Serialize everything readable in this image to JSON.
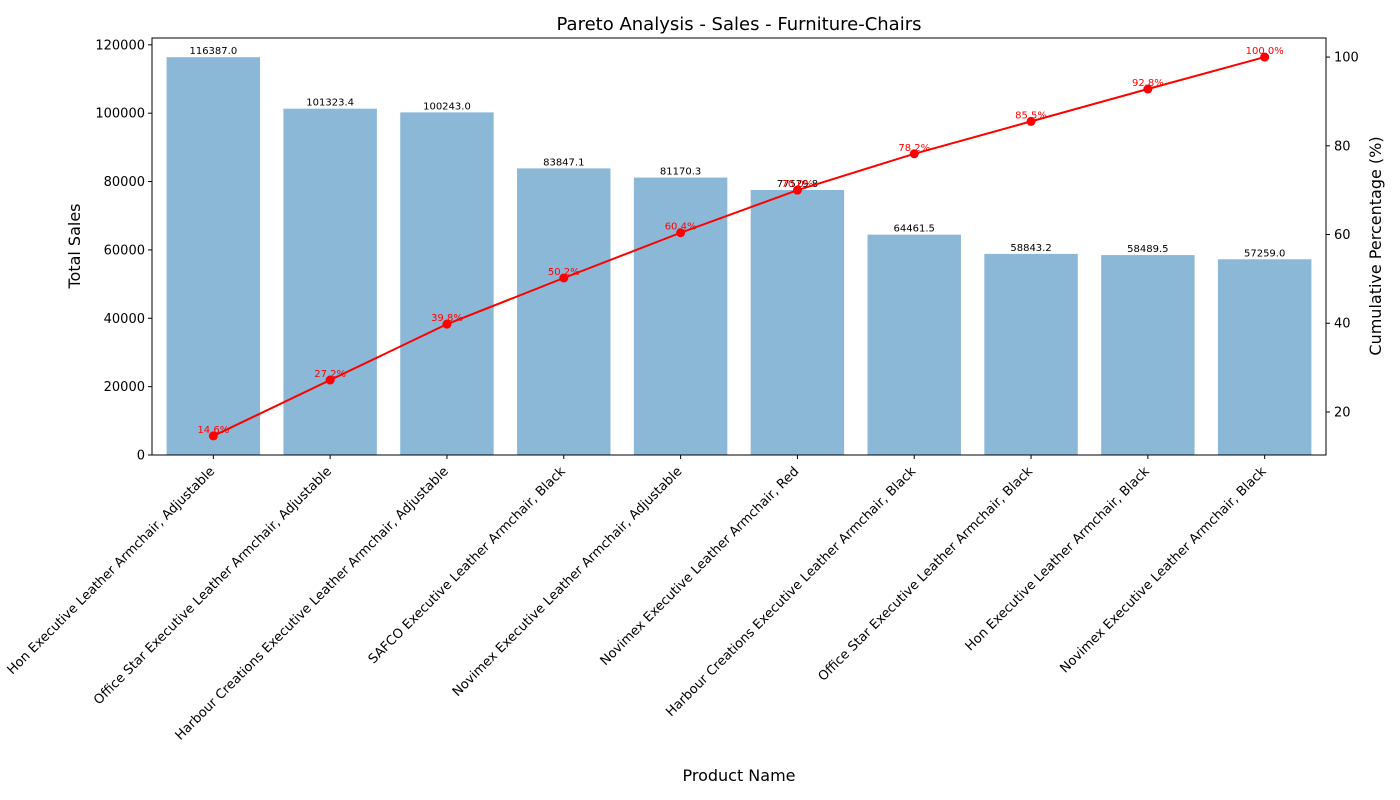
{
  "chart_data": {
    "type": "bar",
    "title": "Pareto Analysis - Sales - Furniture-Chairs",
    "xlabel": "Product Name",
    "ylabel": "Total Sales",
    "y2label": "Cumulative Percentage (%)",
    "ylim": [
      0,
      122000
    ],
    "y2lim": [
      10.3,
      104.3
    ],
    "yticks": [
      "0",
      "20000",
      "40000",
      "60000",
      "80000",
      "100000",
      "120000"
    ],
    "y2ticks": [
      "20",
      "40",
      "60",
      "80",
      "100"
    ],
    "categories": [
      "Hon Executive Leather Armchair, Adjustable",
      "Office Star Executive Leather Armchair, Adjustable",
      "Harbour Creations Executive Leather Armchair, Adjustable",
      "SAFCO Executive Leather Armchair, Black",
      "Novimex Executive Leather Armchair, Adjustable",
      "Novimex Executive Leather Armchair, Red",
      "Harbour Creations Executive Leather Armchair, Black",
      "Office Star Executive Leather Armchair, Black",
      "Hon Executive Leather Armchair, Black",
      "Novimex Executive Leather Armchair, Black"
    ],
    "series": [
      {
        "type": "bar",
        "values": [
          116387.0,
          101323.4,
          100243.0,
          83847.1,
          81170.3,
          77529.8,
          64461.5,
          58843.2,
          58489.5,
          57259.0
        ],
        "labels": [
          "116387.0",
          "101323.4",
          "100243.0",
          "83847.1",
          "81170.3",
          "77529.8",
          "64461.5",
          "58843.2",
          "58489.5",
          "57259.0"
        ],
        "color": "#8cb8d8"
      },
      {
        "type": "line",
        "axis": "right",
        "values": [
          14.6,
          27.2,
          39.8,
          50.2,
          60.4,
          70.0,
          78.2,
          85.5,
          92.8,
          100.0
        ],
        "labels": [
          "14.6%",
          "27.2%",
          "39.8%",
          "50.2%",
          "60.4%",
          "70.0%",
          "78.2%",
          "85.5%",
          "92.8%",
          "100.0%"
        ],
        "color": "#ff0000"
      }
    ],
    "grid": false,
    "legend": "none"
  }
}
